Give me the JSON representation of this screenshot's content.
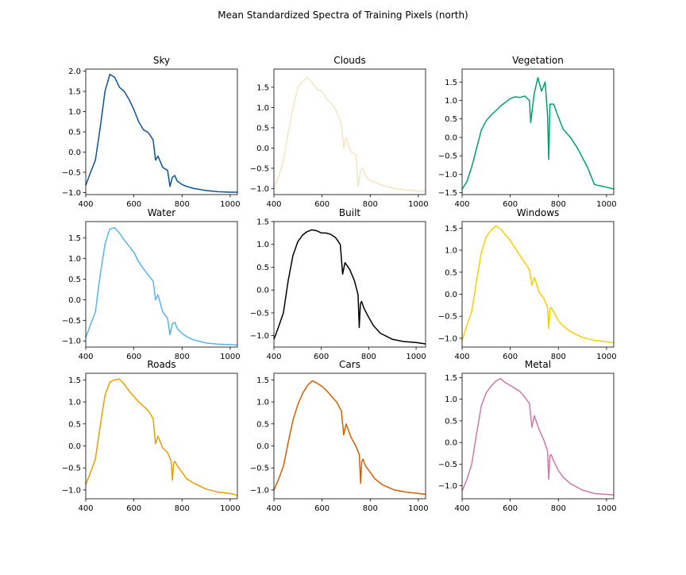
{
  "figure": {
    "title": "Mean Standardized Spectra of Training Pixels (north)"
  },
  "chart_data": [
    {
      "type": "line",
      "title": "Sky",
      "color": "#0b5394",
      "xlim": [
        400,
        1030
      ],
      "ylim": [
        -1.05,
        2.05
      ],
      "xticks": [
        400,
        600,
        800,
        1000
      ],
      "yticks": [
        -1.0,
        -0.5,
        0.0,
        0.5,
        1.0,
        1.5,
        2.0
      ],
      "x": [
        400,
        420,
        440,
        460,
        480,
        500,
        520,
        540,
        560,
        580,
        600,
        620,
        640,
        660,
        680,
        690,
        700,
        720,
        740,
        750,
        760,
        770,
        780,
        800,
        820,
        850,
        900,
        950,
        1000,
        1030
      ],
      "y": [
        -0.82,
        -0.5,
        -0.2,
        0.6,
        1.5,
        1.92,
        1.85,
        1.6,
        1.5,
        1.3,
        1.05,
        0.75,
        0.55,
        0.48,
        0.3,
        -0.2,
        -0.1,
        -0.38,
        -0.45,
        -0.85,
        -0.62,
        -0.58,
        -0.72,
        -0.8,
        -0.85,
        -0.9,
        -0.95,
        -0.98,
        -0.99,
        -0.99
      ]
    },
    {
      "type": "line",
      "title": "Clouds",
      "color": "#f1e6c4",
      "xlim": [
        400,
        1030
      ],
      "ylim": [
        -1.15,
        1.95
      ],
      "xticks": [
        400,
        600,
        800,
        1000
      ],
      "yticks": [
        -1.0,
        -0.5,
        0.0,
        0.5,
        1.0,
        1.5
      ],
      "x": [
        400,
        420,
        440,
        460,
        480,
        500,
        520,
        540,
        560,
        580,
        600,
        620,
        640,
        660,
        680,
        690,
        700,
        720,
        740,
        750,
        760,
        770,
        780,
        800,
        820,
        850,
        900,
        950,
        1000,
        1030
      ],
      "y": [
        -1.0,
        -0.7,
        -0.3,
        0.4,
        1.0,
        1.5,
        1.65,
        1.75,
        1.6,
        1.45,
        1.4,
        1.2,
        1.1,
        0.9,
        0.6,
        0.0,
        0.25,
        -0.1,
        -0.15,
        -0.95,
        -0.55,
        -0.5,
        -0.7,
        -0.8,
        -0.85,
        -0.92,
        -1.0,
        -1.04,
        -1.06,
        -1.07
      ]
    },
    {
      "type": "line",
      "title": "Vegetation",
      "color": "#009e73",
      "xlim": [
        400,
        1030
      ],
      "ylim": [
        -1.55,
        1.85
      ],
      "xticks": [
        400,
        600,
        800,
        1000
      ],
      "yticks": [
        -1.5,
        -1.0,
        -0.5,
        0.0,
        0.5,
        1.0,
        1.5
      ],
      "x": [
        400,
        420,
        440,
        460,
        480,
        500,
        520,
        540,
        560,
        580,
        600,
        620,
        640,
        660,
        680,
        685,
        700,
        715,
        730,
        745,
        755,
        760,
        765,
        780,
        800,
        820,
        850,
        880,
        900,
        920,
        950,
        1000,
        1030
      ],
      "y": [
        -1.4,
        -1.2,
        -0.8,
        -0.3,
        0.2,
        0.45,
        0.6,
        0.72,
        0.85,
        0.95,
        1.05,
        1.1,
        1.08,
        1.12,
        1.0,
        0.4,
        1.2,
        1.62,
        1.25,
        1.5,
        0.6,
        -0.6,
        0.9,
        0.9,
        0.55,
        0.22,
        0.0,
        -0.3,
        -0.55,
        -0.8,
        -1.28,
        -1.35,
        -1.4
      ]
    },
    {
      "type": "line",
      "title": "Water",
      "color": "#56b4e9",
      "xlim": [
        400,
        1030
      ],
      "ylim": [
        -1.15,
        1.9
      ],
      "xticks": [
        400,
        600,
        800,
        1000
      ],
      "yticks": [
        -1.0,
        -0.5,
        0.0,
        0.5,
        1.0,
        1.5
      ],
      "x": [
        400,
        420,
        440,
        460,
        480,
        500,
        520,
        540,
        560,
        580,
        600,
        620,
        640,
        660,
        680,
        690,
        700,
        720,
        740,
        750,
        760,
        770,
        780,
        800,
        820,
        850,
        900,
        950,
        1000,
        1030
      ],
      "y": [
        -0.92,
        -0.6,
        -0.3,
        0.6,
        1.35,
        1.72,
        1.75,
        1.62,
        1.45,
        1.3,
        1.15,
        0.92,
        0.75,
        0.6,
        0.45,
        0.0,
        0.12,
        -0.3,
        -0.45,
        -0.85,
        -0.58,
        -0.55,
        -0.7,
        -0.82,
        -0.9,
        -0.98,
        -1.05,
        -1.08,
        -1.09,
        -1.1
      ]
    },
    {
      "type": "line",
      "title": "Built",
      "color": "#000000",
      "xlim": [
        400,
        1040
      ],
      "ylim": [
        -1.25,
        1.5
      ],
      "xticks": [
        400,
        600,
        800,
        1000
      ],
      "yticks": [
        -1.0,
        -0.5,
        0.0,
        0.5,
        1.0,
        1.5
      ],
      "x": [
        400,
        420,
        440,
        460,
        480,
        500,
        520,
        540,
        560,
        580,
        600,
        620,
        640,
        660,
        680,
        690,
        700,
        720,
        740,
        755,
        760,
        765,
        770,
        780,
        800,
        820,
        850,
        900,
        950,
        1000,
        1040
      ],
      "y": [
        -1.08,
        -0.8,
        -0.5,
        0.2,
        0.75,
        1.05,
        1.2,
        1.28,
        1.32,
        1.3,
        1.25,
        1.25,
        1.22,
        1.15,
        1.0,
        0.35,
        0.6,
        0.45,
        0.2,
        -0.1,
        -0.82,
        -0.3,
        -0.25,
        -0.4,
        -0.6,
        -0.78,
        -0.95,
        -1.08,
        -1.13,
        -1.15,
        -1.18
      ]
    },
    {
      "type": "line",
      "title": "Windows",
      "color": "#f5d000",
      "xlim": [
        400,
        1030
      ],
      "ylim": [
        -1.2,
        1.65
      ],
      "xticks": [
        400,
        600,
        800,
        1000
      ],
      "yticks": [
        -1.0,
        -0.5,
        0.0,
        0.5,
        1.0,
        1.5
      ],
      "x": [
        400,
        420,
        440,
        460,
        480,
        500,
        520,
        540,
        560,
        580,
        600,
        620,
        640,
        660,
        680,
        690,
        700,
        720,
        740,
        755,
        760,
        765,
        770,
        780,
        800,
        820,
        850,
        900,
        950,
        1000,
        1030
      ],
      "y": [
        -1.05,
        -0.7,
        -0.4,
        0.3,
        0.95,
        1.3,
        1.45,
        1.55,
        1.48,
        1.35,
        1.22,
        1.05,
        0.88,
        0.72,
        0.55,
        0.2,
        0.38,
        0.05,
        -0.1,
        -0.3,
        -0.78,
        -0.35,
        -0.3,
        -0.4,
        -0.6,
        -0.72,
        -0.85,
        -0.98,
        -1.05,
        -1.08,
        -1.1
      ]
    },
    {
      "type": "line",
      "title": "Roads",
      "color": "#e69f00",
      "xlim": [
        400,
        1030
      ],
      "ylim": [
        -1.2,
        1.65
      ],
      "xticks": [
        400,
        600,
        800,
        1000
      ],
      "yticks": [
        -1.0,
        -0.5,
        0.0,
        0.5,
        1.0,
        1.5
      ],
      "x": [
        400,
        420,
        440,
        460,
        480,
        500,
        520,
        540,
        560,
        580,
        600,
        620,
        640,
        660,
        680,
        690,
        700,
        720,
        740,
        755,
        760,
        765,
        770,
        780,
        800,
        820,
        850,
        900,
        950,
        1000,
        1030
      ],
      "y": [
        -0.88,
        -0.6,
        -0.3,
        0.45,
        1.15,
        1.45,
        1.5,
        1.52,
        1.4,
        1.25,
        1.12,
        1.0,
        0.9,
        0.8,
        0.62,
        0.05,
        0.22,
        -0.05,
        -0.15,
        -0.35,
        -0.78,
        -0.4,
        -0.35,
        -0.45,
        -0.6,
        -0.75,
        -0.85,
        -0.98,
        -1.05,
        -1.08,
        -1.12
      ]
    },
    {
      "type": "line",
      "title": "Cars",
      "color": "#d55e00",
      "xlim": [
        400,
        1030
      ],
      "ylim": [
        -1.2,
        1.65
      ],
      "xticks": [
        400,
        600,
        800,
        1000
      ],
      "yticks": [
        -1.0,
        -0.5,
        0.0,
        0.5,
        1.0,
        1.5
      ],
      "x": [
        400,
        420,
        440,
        460,
        480,
        500,
        520,
        540,
        560,
        580,
        600,
        620,
        640,
        660,
        680,
        690,
        700,
        720,
        740,
        755,
        760,
        765,
        770,
        780,
        800,
        820,
        850,
        900,
        950,
        1000,
        1030
      ],
      "y": [
        -1.0,
        -0.75,
        -0.45,
        0.1,
        0.6,
        0.95,
        1.2,
        1.38,
        1.48,
        1.42,
        1.35,
        1.25,
        1.12,
        1.0,
        0.8,
        0.25,
        0.5,
        0.2,
        0.0,
        -0.2,
        -0.85,
        -0.35,
        -0.3,
        -0.45,
        -0.6,
        -0.75,
        -0.88,
        -1.0,
        -1.05,
        -1.08,
        -1.1
      ]
    },
    {
      "type": "line",
      "title": "Metal",
      "color": "#cc79a7",
      "xlim": [
        400,
        1030
      ],
      "ylim": [
        -1.3,
        1.6
      ],
      "xticks": [
        400,
        600,
        800,
        1000
      ],
      "yticks": [
        -1.0,
        -0.5,
        0.0,
        0.5,
        1.0,
        1.5
      ],
      "x": [
        400,
        420,
        440,
        460,
        480,
        500,
        520,
        540,
        560,
        580,
        600,
        620,
        640,
        660,
        680,
        690,
        700,
        720,
        740,
        755,
        760,
        765,
        770,
        780,
        800,
        820,
        850,
        900,
        950,
        1000,
        1030
      ],
      "y": [
        -1.12,
        -0.85,
        -0.5,
        0.2,
        0.85,
        1.15,
        1.3,
        1.42,
        1.48,
        1.38,
        1.32,
        1.25,
        1.18,
        1.05,
        0.9,
        0.35,
        0.62,
        0.3,
        0.05,
        -0.2,
        -0.85,
        -0.3,
        -0.28,
        -0.42,
        -0.65,
        -0.8,
        -0.95,
        -1.1,
        -1.18,
        -1.2,
        -1.21
      ]
    }
  ]
}
